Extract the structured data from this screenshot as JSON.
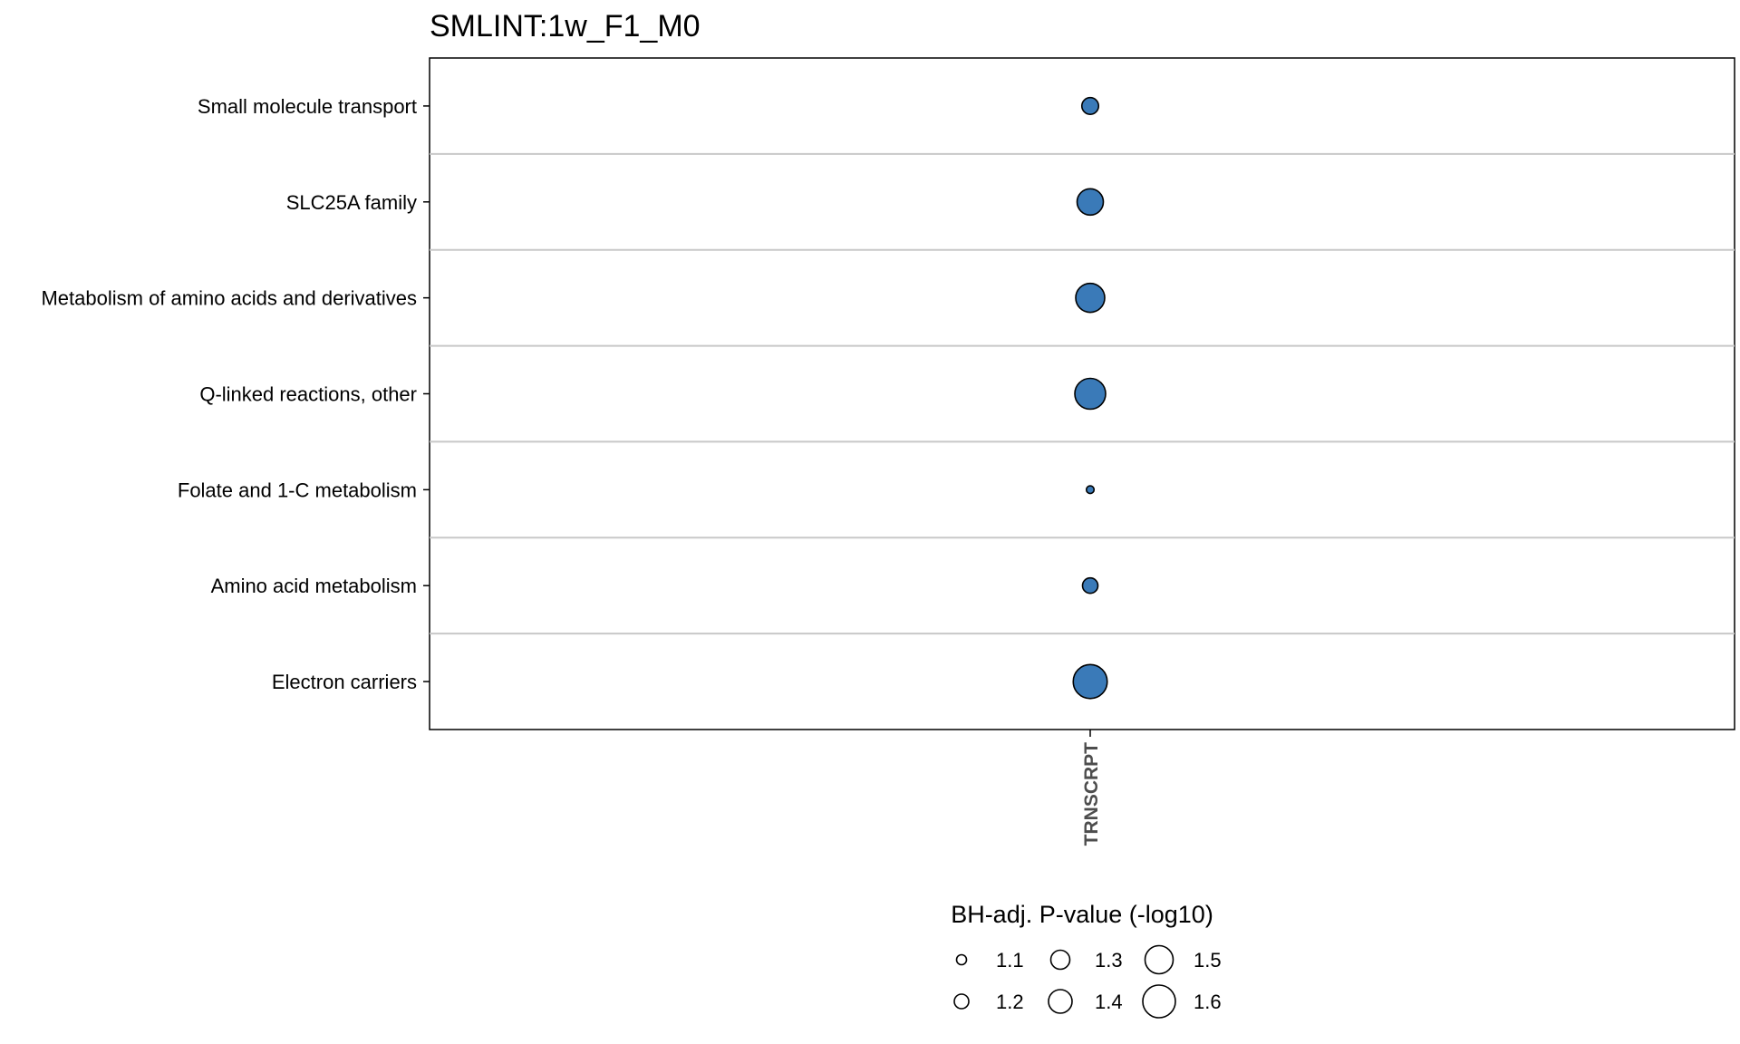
{
  "chart_data": {
    "type": "scatter",
    "title": "SMLINT:1w_F1_M0",
    "x_categories": [
      "TRNSCRPT"
    ],
    "y_categories": [
      "Small molecule transport",
      "SLC25A family",
      "Metabolism of amino acids and derivatives",
      "Q-linked reactions, other",
      "Folate and 1-C metabolism",
      "Amino acid metabolism",
      "Electron carriers"
    ],
    "points": [
      {
        "x": "TRNSCRPT",
        "y": "Small molecule transport",
        "size_value": 1.25
      },
      {
        "x": "TRNSCRPT",
        "y": "SLC25A family",
        "size_value": 1.46
      },
      {
        "x": "TRNSCRPT",
        "y": "Metabolism of amino acids and derivatives",
        "size_value": 1.52
      },
      {
        "x": "TRNSCRPT",
        "y": "Q-linked reactions, other",
        "size_value": 1.56
      },
      {
        "x": "TRNSCRPT",
        "y": "Folate and 1-C metabolism",
        "size_value": 1.05
      },
      {
        "x": "TRNSCRPT",
        "y": "Amino acid metabolism",
        "size_value": 1.22
      },
      {
        "x": "TRNSCRPT",
        "y": "Electron carriers",
        "size_value": 1.63
      }
    ],
    "point_color": "#3a7ab8",
    "point_stroke": "#000000",
    "legend": {
      "title": "BH-adj. P-value (-log10)",
      "position": "bottom",
      "entries": [
        {
          "label": "1.1",
          "value": 1.1
        },
        {
          "label": "1.2",
          "value": 1.2
        },
        {
          "label": "1.3",
          "value": 1.3
        },
        {
          "label": "1.4",
          "value": 1.4
        },
        {
          "label": "1.5",
          "value": 1.5
        },
        {
          "label": "1.6",
          "value": 1.6
        }
      ]
    },
    "grid": {
      "horizontal_separators": true,
      "color": "#c8c8c8"
    }
  }
}
